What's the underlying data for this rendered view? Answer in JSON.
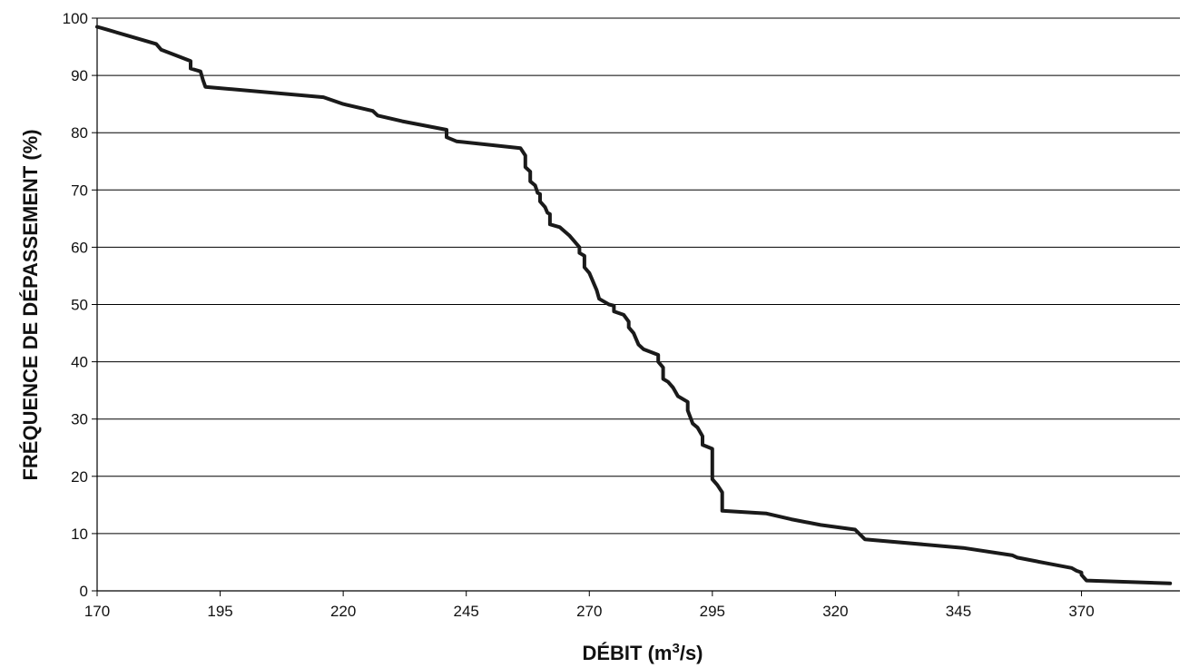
{
  "chart_data": {
    "type": "line",
    "title": "",
    "xlabel": "DÉBIT (m",
    "xlabel_sup": "3",
    "xlabel_end": "/s)",
    "ylabel": "FRÉQUENCE DE DÉPASSEMENT (%)",
    "xlim": [
      170,
      390
    ],
    "ylim": [
      0,
      100
    ],
    "x_ticks": [
      "170",
      "195",
      "220",
      "245",
      "270",
      "295",
      "320",
      "345",
      "370"
    ],
    "y_ticks": [
      "0",
      "10",
      "20",
      "30",
      "40",
      "50",
      "60",
      "70",
      "80",
      "90",
      "100"
    ],
    "grid": "horizontal",
    "legend": "none",
    "line_color": "#1a1a1a",
    "series": [
      {
        "x": [
          170,
          172,
          176,
          182,
          183,
          186,
          189,
          189,
          191,
          191.5,
          192,
          216,
          220,
          226,
          227,
          232,
          241,
          241,
          243,
          256,
          257,
          257,
          258,
          258,
          259,
          259.5,
          260,
          260,
          261,
          261.5,
          262,
          262,
          264,
          266,
          268,
          268,
          269,
          269,
          270,
          270.5,
          271,
          271.5,
          272,
          273,
          274,
          275,
          275,
          277,
          278,
          278,
          279,
          279.5,
          280,
          281,
          284,
          284,
          285,
          285,
          286,
          287,
          288,
          290,
          290,
          291,
          292,
          293,
          293,
          295,
          295,
          296,
          297,
          297,
          306,
          311,
          317,
          324,
          326,
          346,
          356,
          357,
          363,
          368,
          369,
          370,
          370,
          371,
          388
        ],
        "y": [
          98.5,
          98,
          97,
          95.5,
          94.5,
          93.5,
          92.5,
          91.2,
          90.7,
          89.2,
          88,
          86.2,
          85,
          83.8,
          83,
          82,
          80.5,
          79.2,
          78.5,
          77.3,
          76,
          74,
          73.2,
          71.5,
          70.8,
          69.5,
          69.3,
          68,
          67,
          66,
          65.8,
          64,
          63.5,
          62,
          60,
          59,
          58.5,
          56.5,
          55.5,
          54.5,
          53.5,
          52.5,
          51,
          50.5,
          50,
          49.8,
          48.8,
          48.2,
          47,
          46,
          45,
          44,
          43,
          42.2,
          41.2,
          40,
          39,
          37,
          36.5,
          35.5,
          34,
          33,
          31.5,
          29.2,
          28.5,
          27,
          25.5,
          24.8,
          19.5,
          18.5,
          17.2,
          14,
          13.5,
          12.5,
          11.5,
          10.7,
          9,
          7.5,
          6.2,
          5.8,
          4.8,
          4,
          3.5,
          3.2,
          2.8,
          1.8,
          1.3
        ]
      }
    ]
  }
}
